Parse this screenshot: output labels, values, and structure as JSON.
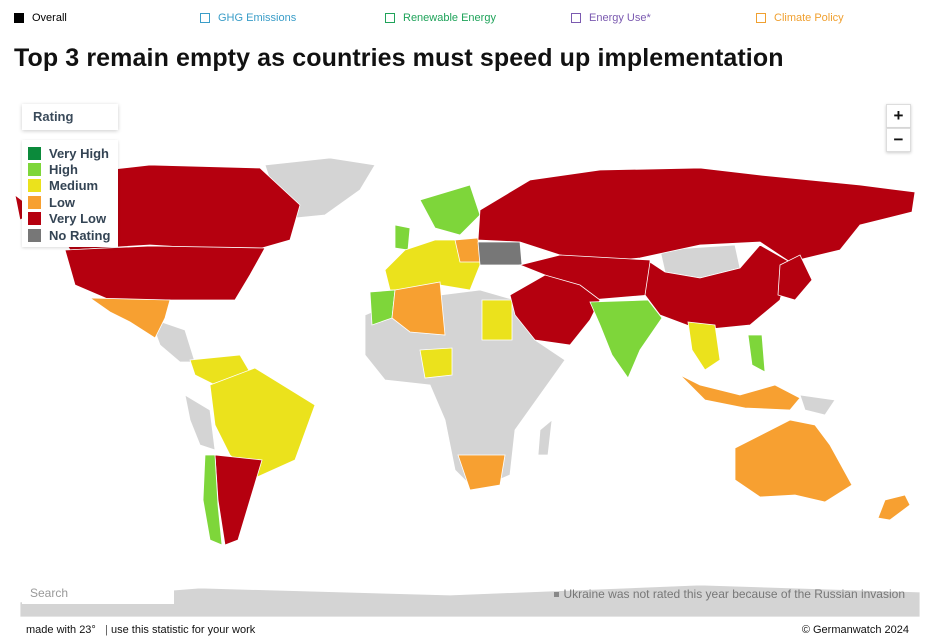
{
  "tabs": [
    {
      "label": "Overall",
      "color": "#000000"
    },
    {
      "label": "GHG Emissions",
      "color": "#3a9dc8"
    },
    {
      "label": "Renewable Energy",
      "color": "#1fa35a"
    },
    {
      "label": "Energy Use*",
      "color": "#7b5ab0"
    },
    {
      "label": "Climate Policy",
      "color": "#f0a030"
    }
  ],
  "title": "Top 3 remain empty as countries must speed up implementation",
  "legend": {
    "title": "Rating",
    "items": [
      {
        "label": "Very High",
        "color": "#0b8a3b"
      },
      {
        "label": "High",
        "color": "#7ed63a"
      },
      {
        "label": "Medium",
        "color": "#ebe21c"
      },
      {
        "label": "Low",
        "color": "#f7a031"
      },
      {
        "label": "Very Low",
        "color": "#b5000f"
      },
      {
        "label": "No Rating",
        "color": "#777777"
      }
    ]
  },
  "zoom": {
    "in": "+",
    "out": "−"
  },
  "search_placeholder": "Search",
  "note": "Ukraine was not rated this year because of the Russian invasion",
  "footer": {
    "made_with": "made with 23°",
    "use": "use this statistic for your work",
    "credit": "© Germanwatch 2024"
  }
}
